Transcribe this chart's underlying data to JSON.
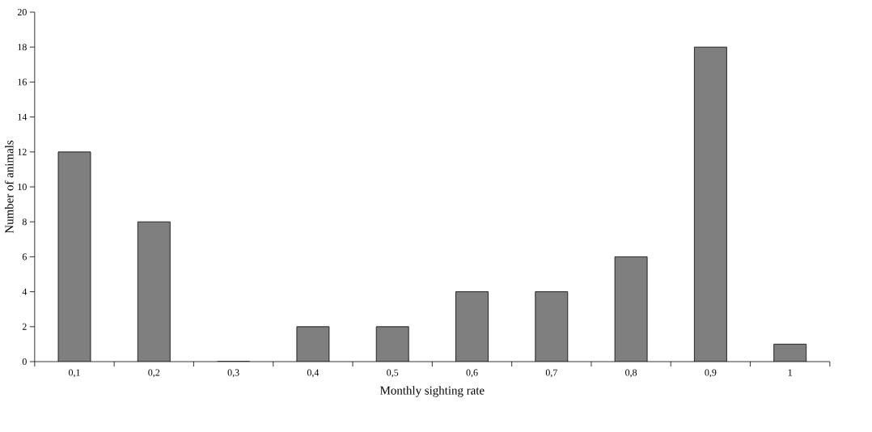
{
  "chart_data": {
    "type": "bar",
    "xlabel": "Monthly sighting rate",
    "ylabel": "Number of animals",
    "categories": [
      "0,1",
      "0,2",
      "0,3",
      "0,4",
      "0,5",
      "0,6",
      "0,7",
      "0,8",
      "0,9",
      "1"
    ],
    "values": [
      12,
      8,
      0,
      2,
      2,
      4,
      4,
      6,
      18,
      1
    ],
    "color": "#7f7f7f",
    "ylim": [
      0,
      20
    ],
    "yticks": [
      0,
      2,
      4,
      6,
      8,
      10,
      12,
      14,
      16,
      18,
      20
    ]
  }
}
